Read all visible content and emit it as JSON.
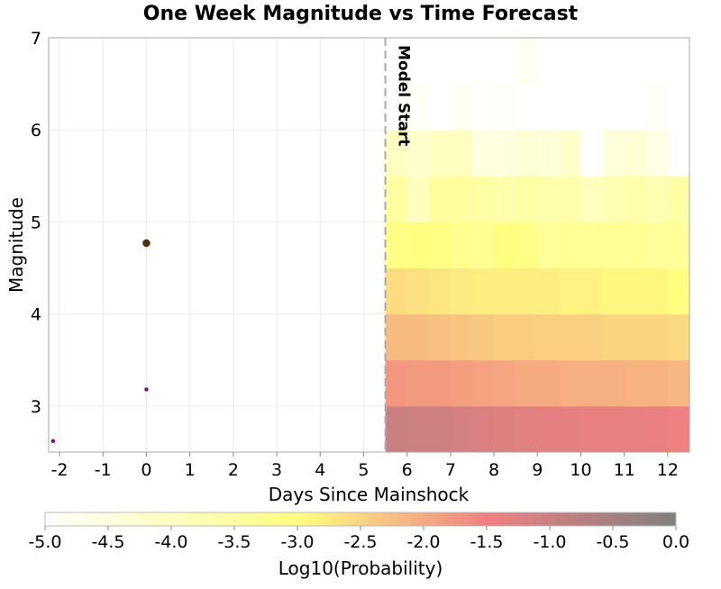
{
  "chart_data": {
    "type": "heatmap",
    "title": "One Week Magnitude vs Time Forecast",
    "xlabel": "Days Since Mainshock",
    "ylabel": "Magnitude",
    "xlim": [
      -2.25,
      12.5
    ],
    "ylim": [
      2.5,
      7
    ],
    "xticks": [
      -2,
      -1,
      0,
      1,
      2,
      3,
      4,
      5,
      6,
      7,
      8,
      9,
      10,
      11,
      12
    ],
    "yticks": [
      3,
      4,
      5,
      6,
      7
    ],
    "grid": true,
    "annotation": {
      "label": "Model Start",
      "x": 5.5,
      "style": "dashed vertical line"
    },
    "heatmap": {
      "x_start": 5.5,
      "x_step": 0.5,
      "y_start": 2.5,
      "y_step": 0.5,
      "rows_log10_probability": [
        [
          -1.0,
          -1.05,
          -1.05,
          -1.1,
          -1.2,
          -1.25,
          -1.3,
          -1.35,
          -1.35,
          -1.4,
          -1.4,
          -1.4,
          -1.45,
          -1.5
        ],
        [
          -1.75,
          -1.8,
          -1.8,
          -1.85,
          -1.9,
          -1.95,
          -2.0,
          -2.0,
          -2.05,
          -2.05,
          -2.05,
          -2.1,
          -2.1,
          -2.15
        ],
        [
          -2.2,
          -2.2,
          -2.25,
          -2.3,
          -2.35,
          -2.4,
          -2.4,
          -2.45,
          -2.45,
          -2.45,
          -2.5,
          -2.5,
          -2.5,
          -2.55
        ],
        [
          -2.6,
          -2.65,
          -2.7,
          -2.75,
          -2.8,
          -2.8,
          -2.8,
          -2.8,
          -2.85,
          -2.85,
          -2.9,
          -2.9,
          -2.9,
          -3.0
        ],
        [
          -3.1,
          -3.0,
          -3.1,
          -3.2,
          -3.3,
          -3.0,
          -3.1,
          -3.4,
          -3.3,
          -3.35,
          -3.3,
          -3.3,
          -3.4,
          -3.4
        ],
        [
          -3.5,
          -4.0,
          -3.5,
          -3.5,
          -3.6,
          -3.7,
          -3.6,
          -3.7,
          -3.7,
          -4.0,
          -3.8,
          -3.7,
          -3.8,
          -3.6
        ],
        [
          -4.0,
          -4.2,
          -4.0,
          -4.0,
          -4.5,
          -4.5,
          -4.3,
          -4.4,
          -4.2,
          -5.0,
          -4.4,
          -4.3,
          -4.6,
          -5.0
        ],
        [
          -5.0,
          -4.9,
          -5.0,
          -4.8,
          -5.0,
          -4.9,
          -5.0,
          -5.0,
          -5.0,
          -5.0,
          -5.0,
          -5.0,
          -4.9,
          -5.0
        ],
        [
          -5.0,
          -5.0,
          -5.0,
          -5.0,
          -5.0,
          -5.0,
          -4.8,
          -5.0,
          -5.0,
          -5.0,
          -5.0,
          -5.0,
          -5.0,
          -5.0
        ]
      ]
    },
    "events": [
      {
        "x": 0,
        "y": 4.77,
        "color": "#5a2d00",
        "kind": "mainshock"
      },
      {
        "x": 0,
        "y": 3.18,
        "color": "#8b008b",
        "kind": "aftershock"
      },
      {
        "x": -2.15,
        "y": 2.62,
        "color": "#8b008b",
        "kind": "aftershock"
      }
    ],
    "colorbar": {
      "label": "Log10(Probability)",
      "range": [
        -5.0,
        0.0
      ],
      "ticks": [
        "-5.0",
        "-4.5",
        "-4.0",
        "-3.5",
        "-3.0",
        "-2.5",
        "-2.0",
        "-1.5",
        "-1.0",
        "-0.5",
        "0.0"
      ],
      "stops": [
        {
          "value": -5.0,
          "color": "#ffffff"
        },
        {
          "value": -3.0,
          "color": "#ffff80"
        },
        {
          "value": -1.5,
          "color": "#f08080"
        },
        {
          "value": 0.0,
          "color": "#808080"
        }
      ]
    }
  }
}
